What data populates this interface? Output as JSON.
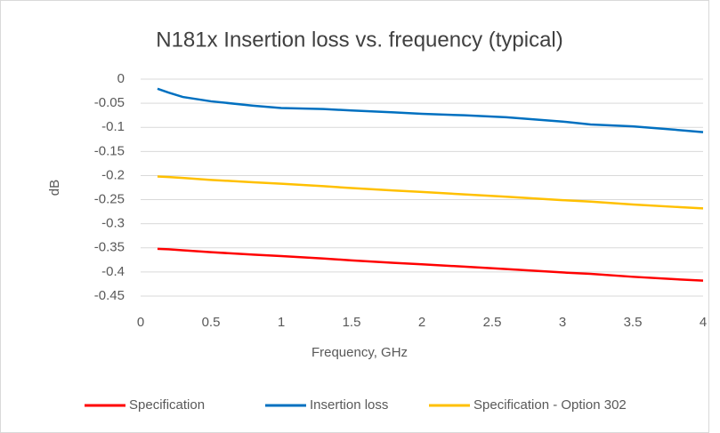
{
  "chart_data": {
    "type": "line",
    "title": "N181x Insertion loss vs. frequency (typical)",
    "xlabel": "Frequency, GHz",
    "ylabel": "dB",
    "x": [
      0.12,
      0.2,
      0.3,
      0.5,
      0.8,
      1,
      1.3,
      1.5,
      1.8,
      2,
      2.3,
      2.6,
      3,
      3.2,
      3.5,
      3.8,
      4
    ],
    "series": [
      {
        "name": "Specification",
        "color": "#ff0000",
        "values": [
          -0.352,
          -0.353,
          -0.355,
          -0.359,
          -0.364,
          -0.367,
          -0.372,
          -0.376,
          -0.381,
          -0.384,
          -0.389,
          -0.394,
          -0.401,
          -0.404,
          -0.41,
          -0.415,
          -0.418
        ]
      },
      {
        "name": "Insertion loss",
        "color": "#0070c0",
        "values": [
          -0.02,
          -0.028,
          -0.037,
          -0.046,
          -0.055,
          -0.06,
          -0.062,
          -0.065,
          -0.069,
          -0.072,
          -0.075,
          -0.079,
          -0.088,
          -0.094,
          -0.098,
          -0.105,
          -0.11
        ]
      },
      {
        "name": "Specification - Option 302",
        "color": "#ffc000",
        "values": [
          -0.202,
          -0.203,
          -0.205,
          -0.209,
          -0.214,
          -0.217,
          -0.222,
          -0.226,
          -0.231,
          -0.234,
          -0.239,
          -0.244,
          -0.251,
          -0.254,
          -0.26,
          -0.265,
          -0.268
        ]
      }
    ],
    "xlim": [
      0,
      4
    ],
    "xticks": [
      0,
      0.5,
      1,
      1.5,
      2,
      2.5,
      3,
      3.5,
      4
    ],
    "ylim": [
      -0.45,
      0
    ],
    "yticks": [
      0,
      -0.05,
      -0.1,
      -0.15,
      -0.2,
      -0.25,
      -0.3,
      -0.35,
      -0.4,
      -0.45
    ],
    "grid": true,
    "legend": "bottom"
  }
}
